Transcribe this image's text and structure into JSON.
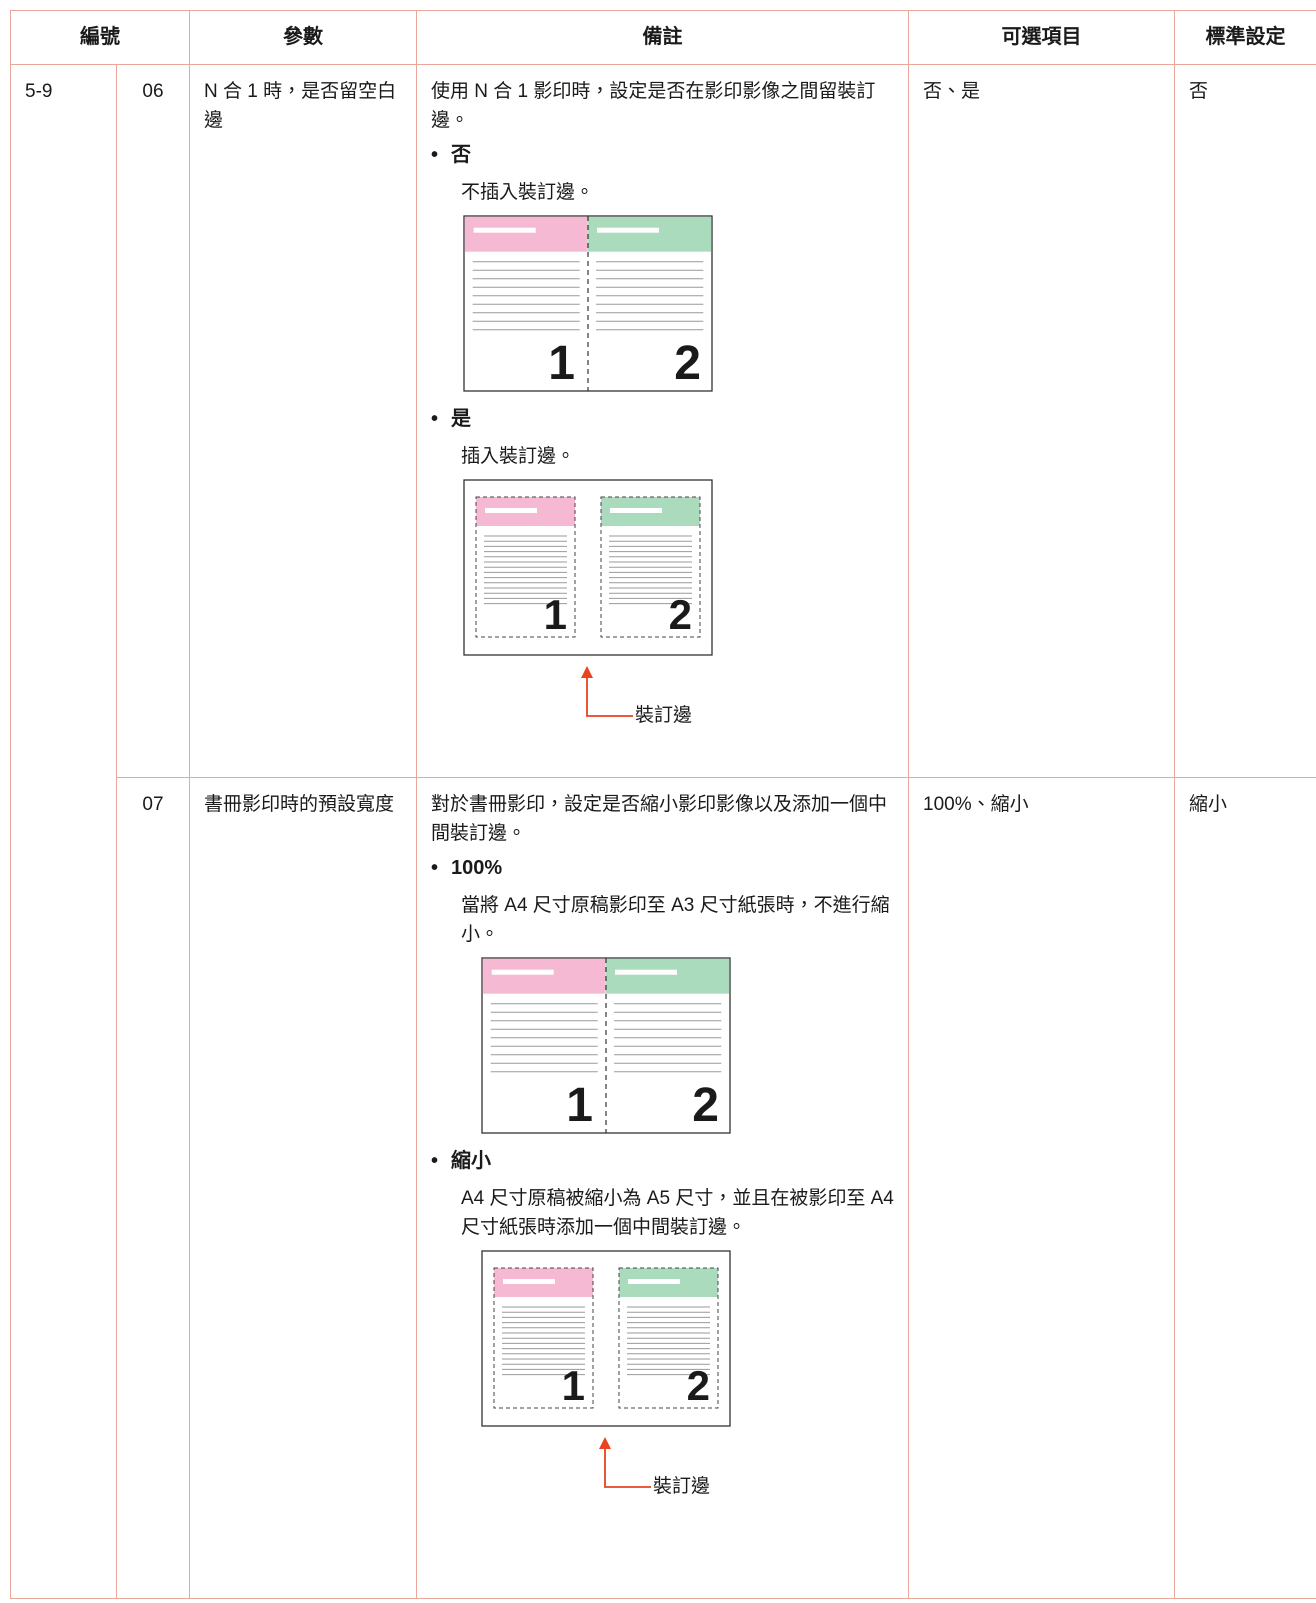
{
  "table": {
    "header": [
      "編號",
      "參數",
      "備註",
      "可選項目",
      "標準設定"
    ],
    "group": "5-9",
    "rows": [
      {
        "number": "06",
        "parameter": "N 合 1 時，是否留空白邊",
        "description": "使用 N 合 1 影印時，設定是否在影印影像之間留裝訂邊。",
        "options": [
          {
            "title": "否",
            "text": "不插入裝訂邊。",
            "page_labels": [
              "1",
              "2"
            ]
          },
          {
            "title": "是",
            "text": "插入裝訂邊。",
            "page_labels": [
              "1",
              "2"
            ],
            "callout": "裝訂邊"
          }
        ],
        "choices": "否、是",
        "default": "否"
      },
      {
        "number": "07",
        "parameter": "書冊影印時的預設寬度",
        "description": "對於書冊影印，設定是否縮小影印影像以及添加一個中間裝訂邊。",
        "options": [
          {
            "title": "100%",
            "text": "當將 A4 尺寸原稿影印至 A3 尺寸紙張時，不進行縮小。",
            "page_labels": [
              "1",
              "2"
            ]
          },
          {
            "title": "縮小",
            "text": "A4 尺寸原稿被縮小為 A5 尺寸，並且在被影印至 A4 尺寸紙張時添加一個中間裝訂邊。",
            "page_labels": [
              "1",
              "2"
            ],
            "callout": "裝訂邊"
          }
        ],
        "choices": "100%、縮小",
        "default": "縮小"
      }
    ]
  }
}
